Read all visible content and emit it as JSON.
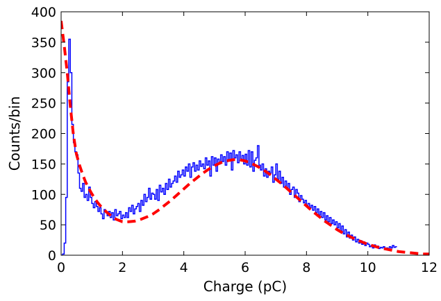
{
  "chart_data": {
    "type": "line",
    "title": "",
    "xlabel": "Charge (pC)",
    "ylabel": "Counts/bin",
    "xlim": [
      0,
      12
    ],
    "ylim": [
      0,
      400
    ],
    "grid": false,
    "legend": "none",
    "xticks": [
      "0",
      "2",
      "4",
      "6",
      "8",
      "10",
      "12"
    ],
    "yticks": [
      "0",
      "50",
      "100",
      "150",
      "200",
      "250",
      "300",
      "350",
      "400"
    ],
    "series": [
      {
        "style": "step",
        "color": "#0000ff",
        "x": [
          0.0,
          0.05,
          0.1,
          0.15,
          0.2,
          0.25,
          0.3,
          0.35,
          0.4,
          0.45,
          0.5,
          0.55,
          0.6,
          0.65,
          0.7,
          0.75,
          0.8,
          0.85,
          0.9,
          0.95,
          1.0,
          1.05,
          1.1,
          1.15,
          1.2,
          1.25,
          1.3,
          1.35,
          1.4,
          1.45,
          1.5,
          1.55,
          1.6,
          1.65,
          1.7,
          1.75,
          1.8,
          1.85,
          1.9,
          1.95,
          2.0,
          2.05,
          2.1,
          2.15,
          2.2,
          2.25,
          2.3,
          2.35,
          2.4,
          2.45,
          2.5,
          2.55,
          2.6,
          2.65,
          2.7,
          2.75,
          2.8,
          2.85,
          2.9,
          2.95,
          3.0,
          3.05,
          3.1,
          3.15,
          3.2,
          3.25,
          3.3,
          3.35,
          3.4,
          3.45,
          3.5,
          3.55,
          3.6,
          3.65,
          3.7,
          3.75,
          3.8,
          3.85,
          3.9,
          3.95,
          4.0,
          4.05,
          4.1,
          4.15,
          4.2,
          4.25,
          4.3,
          4.35,
          4.4,
          4.45,
          4.5,
          4.55,
          4.6,
          4.65,
          4.7,
          4.75,
          4.8,
          4.85,
          4.9,
          4.95,
          5.0,
          5.05,
          5.1,
          5.15,
          5.2,
          5.25,
          5.3,
          5.35,
          5.4,
          5.45,
          5.5,
          5.55,
          5.6,
          5.65,
          5.7,
          5.75,
          5.8,
          5.85,
          5.9,
          5.95,
          6.0,
          6.05,
          6.1,
          6.15,
          6.2,
          6.25,
          6.3,
          6.35,
          6.4,
          6.45,
          6.5,
          6.55,
          6.6,
          6.65,
          6.7,
          6.75,
          6.8,
          6.85,
          6.9,
          6.95,
          7.0,
          7.05,
          7.1,
          7.15,
          7.2,
          7.25,
          7.3,
          7.35,
          7.4,
          7.45,
          7.5,
          7.55,
          7.6,
          7.65,
          7.7,
          7.75,
          7.8,
          7.85,
          7.9,
          7.95,
          8.0,
          8.05,
          8.1,
          8.15,
          8.2,
          8.25,
          8.3,
          8.35,
          8.4,
          8.45,
          8.5,
          8.55,
          8.6,
          8.65,
          8.7,
          8.75,
          8.8,
          8.85,
          8.9,
          8.95,
          9.0,
          9.05,
          9.1,
          9.15,
          9.2,
          9.25,
          9.3,
          9.35,
          9.4,
          9.45,
          9.5,
          9.55,
          9.6,
          9.65,
          9.7,
          9.75,
          9.8,
          9.85,
          9.9,
          9.95,
          10.0,
          10.05,
          10.1,
          10.15,
          10.2,
          10.25,
          10.3,
          10.35,
          10.4,
          10.45,
          10.5,
          10.55,
          10.6,
          10.65,
          10.7,
          10.75,
          10.8,
          10.85,
          10.9
        ],
        "y": [
          0,
          2,
          20,
          95,
          285,
          355,
          300,
          215,
          185,
          170,
          165,
          135,
          110,
          105,
          118,
          95,
          100,
          90,
          112,
          95,
          85,
          78,
          88,
          80,
          72,
          78,
          68,
          60,
          75,
          70,
          65,
          72,
          62,
          70,
          58,
          75,
          65,
          68,
          72,
          60,
          66,
          62,
          70,
          62,
          78,
          72,
          82,
          68,
          76,
          80,
          85,
          72,
          90,
          82,
          100,
          88,
          95,
          110,
          92,
          102,
          100,
          92,
          108,
          90,
          115,
          104,
          110,
          100,
          118,
          108,
          125,
          112,
          118,
          122,
          130,
          120,
          138,
          128,
          132,
          140,
          130,
          145,
          138,
          150,
          128,
          145,
          152,
          138,
          148,
          140,
          155,
          146,
          150,
          142,
          160,
          148,
          155,
          130,
          162,
          148,
          160,
          138,
          158,
          150,
          165,
          154,
          162,
          148,
          170,
          155,
          168,
          140,
          172,
          160,
          165,
          152,
          170,
          158,
          164,
          150,
          166,
          148,
          172,
          145,
          170,
          138,
          156,
          160,
          180,
          148,
          140,
          150,
          130,
          142,
          128,
          138,
          135,
          145,
          120,
          132,
          150,
          125,
          138,
          118,
          128,
          112,
          122,
          110,
          118,
          100,
          108,
          112,
          95,
          108,
          102,
          88,
          98,
          92,
          86,
          90,
          80,
          85,
          78,
          82,
          74,
          80,
          70,
          76,
          66,
          72,
          62,
          70,
          58,
          65,
          55,
          62,
          52,
          58,
          50,
          55,
          45,
          52,
          40,
          48,
          35,
          42,
          30,
          38,
          28,
          33,
          25,
          30,
          22,
          26,
          20,
          24,
          18,
          22,
          16,
          20,
          18,
          14,
          16,
          12,
          17,
          14,
          15,
          11,
          13,
          12,
          14,
          10,
          12,
          11,
          14,
          12,
          16,
          13,
          14
        ]
      },
      {
        "style": "dashed",
        "color": "#ff0000",
        "x": [
          0.0,
          0.1,
          0.2,
          0.3,
          0.4,
          0.5,
          0.6,
          0.7,
          0.8,
          0.9,
          1.0,
          1.1,
          1.2,
          1.3,
          1.4,
          1.5,
          1.6,
          1.7,
          1.8,
          1.9,
          2.0,
          2.2,
          2.4,
          2.6,
          2.8,
          3.0,
          3.2,
          3.4,
          3.6,
          3.8,
          4.0,
          4.2,
          4.4,
          4.6,
          4.8,
          5.0,
          5.2,
          5.4,
          5.6,
          5.8,
          6.0,
          6.2,
          6.4,
          6.6,
          6.8,
          7.0,
          7.2,
          7.4,
          7.6,
          7.8,
          8.0,
          8.2,
          8.4,
          8.6,
          8.8,
          9.0,
          9.2,
          9.4,
          9.6,
          9.8,
          10.0,
          10.2,
          10.4,
          10.6,
          10.8,
          11.0,
          11.2,
          11.4,
          11.6,
          11.8,
          12.0
        ],
        "y": [
          385,
          345,
          300,
          245,
          198,
          166,
          148,
          133,
          120,
          110,
          101,
          93,
          86,
          80,
          75,
          70,
          66,
          62,
          59,
          57,
          55,
          55,
          56,
          59,
          63,
          68,
          75,
          83,
          91,
          100,
          109,
          118,
          126,
          134,
          141,
          147,
          152,
          155,
          157,
          157,
          155,
          151,
          146,
          140,
          133,
          125,
          117,
          108,
          99,
          90,
          81,
          72,
          64,
          56,
          49,
          42,
          36,
          31,
          26,
          22,
          18,
          15,
          12,
          10,
          8,
          6,
          5,
          4,
          3,
          2,
          2
        ]
      }
    ]
  }
}
